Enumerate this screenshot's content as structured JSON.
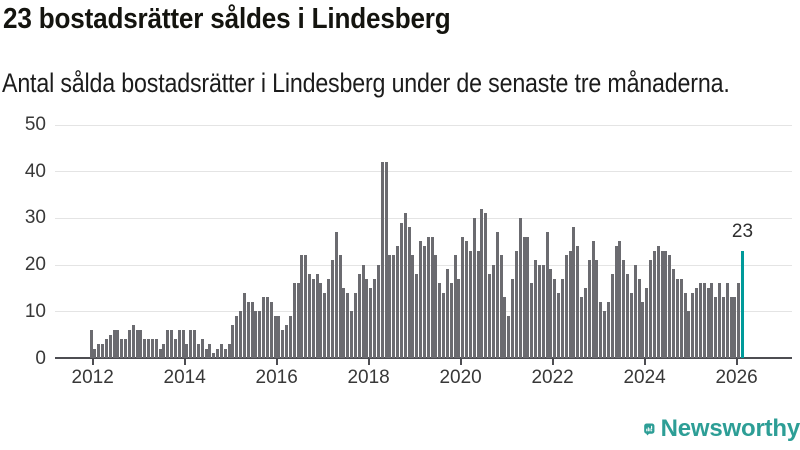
{
  "header": {
    "title": "23 bostadsrätter såldes i Lindesberg",
    "subtitle": "Antal sålda bostadsrätter i Lindesberg under de senaste tre månaderna."
  },
  "chart_data": {
    "type": "bar",
    "title": "23 bostadsrätter såldes i Lindesberg",
    "subtitle": "Antal sålda bostadsrätter i Lindesberg under de senaste tre månaderna.",
    "frequency": "monthly",
    "x_start": "2012-01",
    "x_end": "2026-03",
    "x_tick_years": [
      2012,
      2014,
      2016,
      2018,
      2020,
      2022,
      2024,
      2026
    ],
    "y_ticks": [
      0,
      10,
      20,
      30,
      40,
      50
    ],
    "ylim": [
      0,
      50
    ],
    "grid": "horizontal",
    "values": [
      6,
      2,
      3,
      3,
      4,
      5,
      6,
      6,
      4,
      4,
      6,
      7,
      6,
      6,
      4,
      4,
      4,
      4,
      2,
      3,
      6,
      6,
      4,
      6,
      6,
      3,
      6,
      6,
      3,
      4,
      2,
      3,
      1,
      2,
      3,
      2,
      3,
      7,
      9,
      10,
      14,
      12,
      12,
      10,
      10,
      13,
      13,
      12,
      9,
      9,
      6,
      7,
      9,
      16,
      16,
      22,
      22,
      18,
      17,
      18,
      16,
      14,
      17,
      21,
      27,
      22,
      15,
      14,
      10,
      14,
      18,
      20,
      17,
      15,
      17,
      20,
      42,
      42,
      22,
      22,
      24,
      29,
      31,
      28,
      22,
      18,
      25,
      24,
      26,
      26,
      22,
      16,
      14,
      19,
      16,
      22,
      17,
      26,
      25,
      23,
      30,
      23,
      32,
      31,
      18,
      20,
      27,
      22,
      13,
      9,
      17,
      23,
      30,
      26,
      26,
      16,
      21,
      20,
      20,
      27,
      19,
      17,
      14,
      17,
      22,
      23,
      28,
      24,
      13,
      15,
      21,
      25,
      21,
      12,
      10,
      12,
      18,
      24,
      25,
      21,
      18,
      14,
      20,
      17,
      12,
      15,
      21,
      23,
      24,
      23,
      23,
      22,
      19,
      17,
      17,
      14,
      10,
      14,
      15,
      16,
      16,
      15,
      16,
      13,
      16,
      13,
      16,
      13,
      13,
      16,
      23
    ],
    "highlight_index": 170,
    "highlight_value_label": "23",
    "colors": {
      "bar": "#6b6b70",
      "highlight": "#009a9a",
      "grid": "#e4e4e4",
      "axis": "#4d4d52",
      "label": "#383838"
    }
  },
  "branding": {
    "logo_text": "Newsworthy",
    "logo_color": "#2d9e96",
    "logo_icon": "newsworthy-speech-bubble-bar-chart-icon"
  }
}
